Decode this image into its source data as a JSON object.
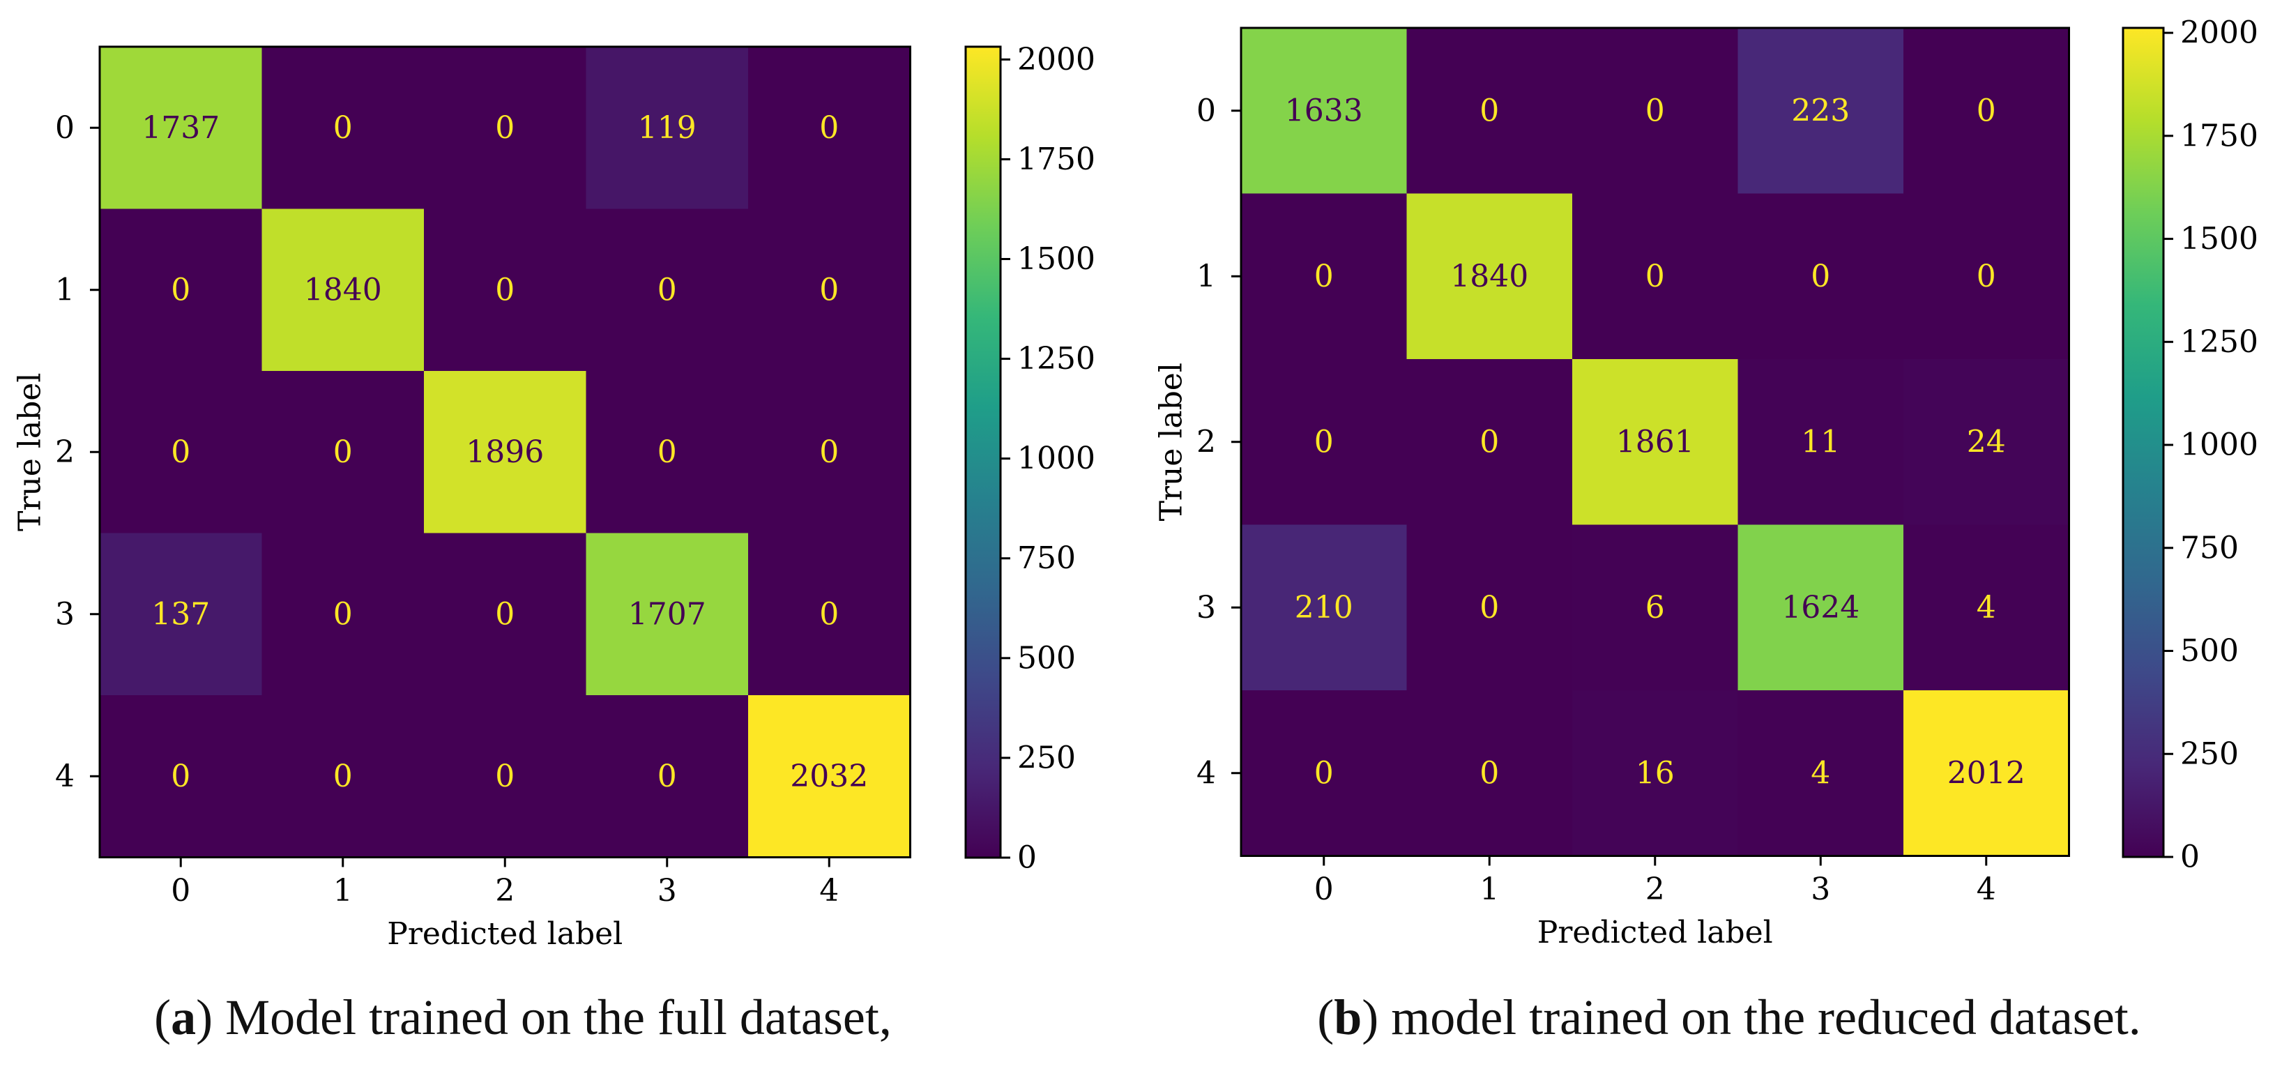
{
  "colors": {
    "viridis": [
      "#440154",
      "#482878",
      "#3e4989",
      "#31688e",
      "#26828e",
      "#1f9e89",
      "#35b779",
      "#6ece58",
      "#b5de2b",
      "#fde725"
    ],
    "text_on_dark": "#fde725",
    "text_on_light": "#440154",
    "axis": "#000000"
  },
  "chart_data": [
    {
      "type": "heatmap",
      "subfigure": "a",
      "caption_label": "a",
      "caption_text": "Model trained on the full dataset,",
      "xlabel": "Predicted label",
      "ylabel": "True label",
      "x_ticks": [
        "0",
        "1",
        "2",
        "3",
        "4"
      ],
      "y_ticks": [
        "0",
        "1",
        "2",
        "3",
        "4"
      ],
      "matrix": [
        [
          1737,
          0,
          0,
          119,
          0
        ],
        [
          0,
          1840,
          0,
          0,
          0
        ],
        [
          0,
          0,
          1896,
          0,
          0
        ],
        [
          137,
          0,
          0,
          1707,
          0
        ],
        [
          0,
          0,
          0,
          0,
          2032
        ]
      ],
      "color_range": [
        0,
        2032
      ],
      "colorbar_ticks": [
        0,
        250,
        500,
        750,
        1000,
        1250,
        1500,
        1750,
        2000
      ]
    },
    {
      "type": "heatmap",
      "subfigure": "b",
      "caption_label": "b",
      "caption_text": "model trained on the reduced dataset.",
      "xlabel": "Predicted label",
      "ylabel": "True label",
      "x_ticks": [
        "0",
        "1",
        "2",
        "3",
        "4"
      ],
      "y_ticks": [
        "0",
        "1",
        "2",
        "3",
        "4"
      ],
      "matrix": [
        [
          1633,
          0,
          0,
          223,
          0
        ],
        [
          0,
          1840,
          0,
          0,
          0
        ],
        [
          0,
          0,
          1861,
          11,
          24
        ],
        [
          210,
          0,
          6,
          1624,
          4
        ],
        [
          0,
          0,
          16,
          4,
          2012
        ]
      ],
      "color_range": [
        0,
        2012
      ],
      "colorbar_ticks": [
        0,
        250,
        500,
        750,
        1000,
        1250,
        1500,
        1750,
        2000
      ]
    }
  ]
}
